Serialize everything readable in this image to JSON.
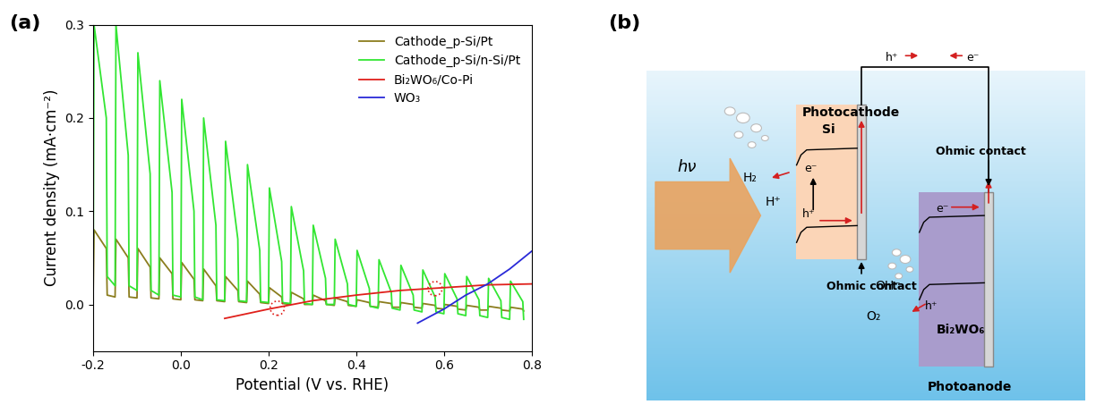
{
  "chart_data": {
    "type": "line",
    "panel_label": "(a)",
    "x_label": "Potential (V vs. RHE)",
    "y_label": "Current density (mA·cm⁻²)",
    "xlim": [
      -0.2,
      0.8
    ],
    "ylim": [
      -0.05,
      0.3
    ],
    "xticks": [
      -0.2,
      0.0,
      0.2,
      0.4,
      0.6,
      0.8
    ],
    "yticks": [
      0.0,
      0.1,
      0.2,
      0.3
    ],
    "legend": "upper right",
    "series": [
      {
        "name": "Cathode_p-Si/Pt",
        "color": "#8b7d1e",
        "x": [
          -0.2,
          -0.198,
          -0.17,
          -0.168,
          -0.15,
          -0.148,
          -0.12,
          -0.118,
          -0.1,
          -0.098,
          -0.07,
          -0.068,
          -0.05,
          -0.048,
          -0.02,
          -0.018,
          0.0,
          0.002,
          0.03,
          0.032,
          0.05,
          0.052,
          0.08,
          0.082,
          0.1,
          0.102,
          0.13,
          0.132,
          0.15,
          0.152,
          0.18,
          0.182,
          0.2,
          0.202,
          0.23,
          0.232,
          0.25,
          0.252,
          0.28,
          0.282,
          0.3,
          0.302,
          0.33,
          0.332,
          0.35,
          0.352,
          0.38,
          0.382,
          0.4,
          0.402,
          0.43,
          0.432,
          0.45,
          0.452,
          0.48,
          0.482,
          0.5,
          0.502,
          0.53,
          0.532,
          0.55,
          0.552,
          0.58,
          0.582,
          0.6,
          0.602,
          0.63,
          0.632,
          0.65,
          0.652,
          0.68,
          0.682,
          0.7,
          0.702,
          0.73,
          0.732,
          0.75,
          0.752,
          0.78,
          0.782
        ],
        "values": [
          0.01,
          0.08,
          0.06,
          0.01,
          0.008,
          0.07,
          0.05,
          0.008,
          0.007,
          0.06,
          0.04,
          0.007,
          0.006,
          0.05,
          0.033,
          0.006,
          0.005,
          0.045,
          0.027,
          0.005,
          0.004,
          0.038,
          0.02,
          0.004,
          0.003,
          0.03,
          0.015,
          0.003,
          0.002,
          0.025,
          0.011,
          0.002,
          0.001,
          0.018,
          0.008,
          0.001,
          0.0,
          0.013,
          0.006,
          0.0,
          0.0,
          0.01,
          0.004,
          0.0,
          -0.001,
          0.007,
          0.003,
          -0.001,
          -0.002,
          0.005,
          0.002,
          -0.002,
          -0.003,
          0.003,
          0.001,
          -0.003,
          -0.003,
          0.002,
          0.0,
          -0.003,
          -0.004,
          0.001,
          -0.001,
          -0.004,
          -0.005,
          0.0,
          -0.002,
          -0.005,
          -0.006,
          -0.001,
          -0.003,
          -0.006,
          -0.006,
          -0.002,
          -0.004,
          -0.006,
          -0.007,
          -0.003,
          -0.005,
          -0.007
        ]
      },
      {
        "name": "Cathode_p-Si/n-Si/Pt",
        "color": "#33e633",
        "x": [
          -0.2,
          -0.198,
          -0.17,
          -0.168,
          -0.15,
          -0.148,
          -0.12,
          -0.118,
          -0.1,
          -0.098,
          -0.07,
          -0.068,
          -0.05,
          -0.048,
          -0.02,
          -0.018,
          0.0,
          0.002,
          0.03,
          0.032,
          0.05,
          0.052,
          0.08,
          0.082,
          0.1,
          0.102,
          0.13,
          0.132,
          0.15,
          0.152,
          0.18,
          0.182,
          0.2,
          0.202,
          0.23,
          0.232,
          0.25,
          0.252,
          0.28,
          0.282,
          0.3,
          0.302,
          0.33,
          0.332,
          0.35,
          0.352,
          0.38,
          0.382,
          0.4,
          0.402,
          0.43,
          0.432,
          0.45,
          0.452,
          0.48,
          0.482,
          0.5,
          0.502,
          0.53,
          0.532,
          0.55,
          0.552,
          0.58,
          0.582,
          0.6,
          0.602,
          0.63,
          0.632,
          0.65,
          0.652,
          0.68,
          0.682,
          0.7,
          0.702,
          0.73,
          0.732,
          0.75,
          0.752,
          0.78,
          0.782
        ],
        "values": [
          0.03,
          0.3,
          0.2,
          0.03,
          0.02,
          0.3,
          0.16,
          0.02,
          0.015,
          0.27,
          0.14,
          0.015,
          0.01,
          0.24,
          0.12,
          0.01,
          0.008,
          0.22,
          0.1,
          0.008,
          0.005,
          0.2,
          0.085,
          0.005,
          0.004,
          0.175,
          0.07,
          0.004,
          0.003,
          0.15,
          0.058,
          0.003,
          0.002,
          0.125,
          0.046,
          0.002,
          0.001,
          0.105,
          0.036,
          0.001,
          0.0,
          0.085,
          0.028,
          0.0,
          0.0,
          0.07,
          0.022,
          0.0,
          -0.002,
          0.058,
          0.017,
          -0.002,
          -0.004,
          0.048,
          0.013,
          -0.004,
          -0.006,
          0.042,
          0.01,
          -0.006,
          -0.008,
          0.037,
          0.008,
          -0.008,
          -0.01,
          0.033,
          0.006,
          -0.01,
          -0.012,
          0.03,
          0.005,
          -0.012,
          -0.014,
          0.028,
          0.004,
          -0.014,
          -0.016,
          0.025,
          0.003,
          -0.016
        ]
      },
      {
        "name": "Bi₂WO₆/Co-Pi",
        "color": "#e0201b",
        "x": [
          0.1,
          0.2,
          0.3,
          0.4,
          0.5,
          0.6,
          0.7,
          0.8
        ],
        "values": [
          -0.015,
          -0.005,
          0.004,
          0.01,
          0.015,
          0.018,
          0.021,
          0.022
        ]
      },
      {
        "name": "WO₃",
        "color": "#2a2ad8",
        "x": [
          0.54,
          0.6,
          0.65,
          0.7,
          0.75,
          0.8
        ],
        "values": [
          -0.02,
          -0.005,
          0.01,
          0.022,
          0.038,
          0.057
        ]
      }
    ],
    "highlighted_points": {
      "x": [
        0.22,
        0.58
      ],
      "values": [
        -0.004,
        0.017
      ],
      "color": "#e0201b",
      "marker": "circle",
      "line_style": "dotted"
    }
  },
  "diagram": {
    "panel_label": "(b)",
    "light": "hν",
    "photocathode": {
      "title": "Photocathode",
      "material": "Si",
      "contact": "Ohmic contact",
      "products": [
        "H₂",
        "H⁺"
      ],
      "carriers": [
        "e⁻",
        "h⁺"
      ]
    },
    "photoanode": {
      "title": "Photoanode",
      "material": "Bi₂WO₆",
      "contact": "Ohmic contact",
      "products": [
        "OH⁻",
        "O₂"
      ],
      "carriers": [
        "e⁻",
        "h⁺"
      ]
    },
    "circuit": {
      "carriers": [
        "h⁺",
        "e⁻"
      ]
    }
  }
}
